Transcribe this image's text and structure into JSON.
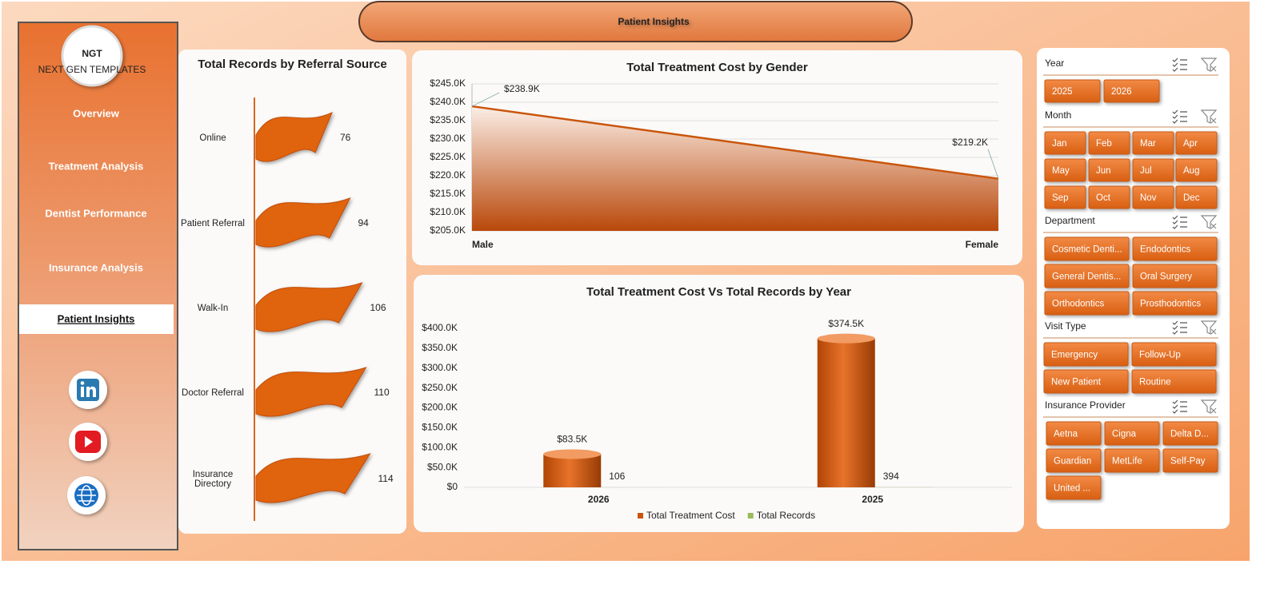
{
  "header": {
    "title": "Patient Insights"
  },
  "logo": {
    "text": "NGT",
    "subtitle": "NEXT GEN TEMPLATES"
  },
  "nav": {
    "items": [
      "Overview",
      "Treatment Analysis",
      "Dentist Performance",
      "Insurance Analysis",
      "Patient Insights"
    ],
    "active": "Patient Insights"
  },
  "chart_data": [
    {
      "type": "bar",
      "orientation": "horizontal",
      "title": "Total Records by Referral Source",
      "categories": [
        "Online",
        "Patient Referral",
        "Walk-In",
        "Doctor Referral",
        "Insurance Directory"
      ],
      "values": [
        76,
        94,
        106,
        110,
        114
      ],
      "color": "#e0640f"
    },
    {
      "type": "area",
      "title": "Total Treatment Cost by Gender",
      "categories": [
        "Male",
        "Female"
      ],
      "values": [
        238900,
        219200
      ],
      "value_labels": [
        "$238.9K",
        "$219.2K"
      ],
      "color": "#c9560c",
      "ylim": [
        205000,
        245000
      ],
      "grid": true,
      "yticks": [
        {
          "value": 205000,
          "label": "$205.0K"
        },
        {
          "value": 210000,
          "label": "$210.0K"
        },
        {
          "value": 215000,
          "label": "$215.0K"
        },
        {
          "value": 220000,
          "label": "$220.0K"
        },
        {
          "value": 225000,
          "label": "$225.0K"
        },
        {
          "value": 230000,
          "label": "$230.0K"
        },
        {
          "value": 235000,
          "label": "$235.0K"
        },
        {
          "value": 240000,
          "label": "$240.0K"
        },
        {
          "value": 245000,
          "label": "$245.0K"
        }
      ]
    },
    {
      "type": "bar",
      "orientation": "vertical",
      "title": "Total Treatment Cost Vs Total Records by Year",
      "categories": [
        "2026",
        "2025"
      ],
      "ylim": [
        0,
        400000
      ],
      "legend": "bottom",
      "yticks": [
        {
          "value": 0,
          "label": "$0"
        },
        {
          "value": 50000,
          "label": "$50.0K"
        },
        {
          "value": 100000,
          "label": "$100.0K"
        },
        {
          "value": 150000,
          "label": "$150.0K"
        },
        {
          "value": 200000,
          "label": "$200.0K"
        },
        {
          "value": 250000,
          "label": "$250.0K"
        },
        {
          "value": 300000,
          "label": "$300.0K"
        },
        {
          "value": 350000,
          "label": "$350.0K"
        },
        {
          "value": 400000,
          "label": "$400.0K"
        }
      ],
      "series": [
        {
          "name": "Total Treatment Cost",
          "color": "#c9560c",
          "values": [
            83500,
            374500
          ],
          "value_labels": [
            "$83.5K",
            "$374.5K"
          ]
        },
        {
          "name": "Total Records",
          "color": "#9bbb59",
          "values": [
            106,
            394
          ]
        }
      ]
    }
  ],
  "slicers": [
    {
      "title": "Year",
      "items": [
        "2025",
        "2026"
      ]
    },
    {
      "title": "Month",
      "items": [
        "Jan",
        "Feb",
        "Mar",
        "Apr",
        "May",
        "Jun",
        "Jul",
        "Aug",
        "Sep",
        "Oct",
        "Nov",
        "Dec"
      ]
    },
    {
      "title": "Department",
      "items": [
        "Cosmetic Denti...",
        "Endodontics",
        "General Dentis...",
        "Oral Surgery",
        "Orthodontics",
        "Prosthodontics"
      ]
    },
    {
      "title": "Visit Type",
      "items": [
        "Emergency",
        "Follow-Up",
        "New Patient",
        "Routine"
      ]
    },
    {
      "title": "Insurance Provider",
      "items": [
        "Aetna",
        "Cigna",
        "Delta D...",
        "Guardian",
        "MetLife",
        "Self-Pay",
        "United ..."
      ]
    }
  ]
}
